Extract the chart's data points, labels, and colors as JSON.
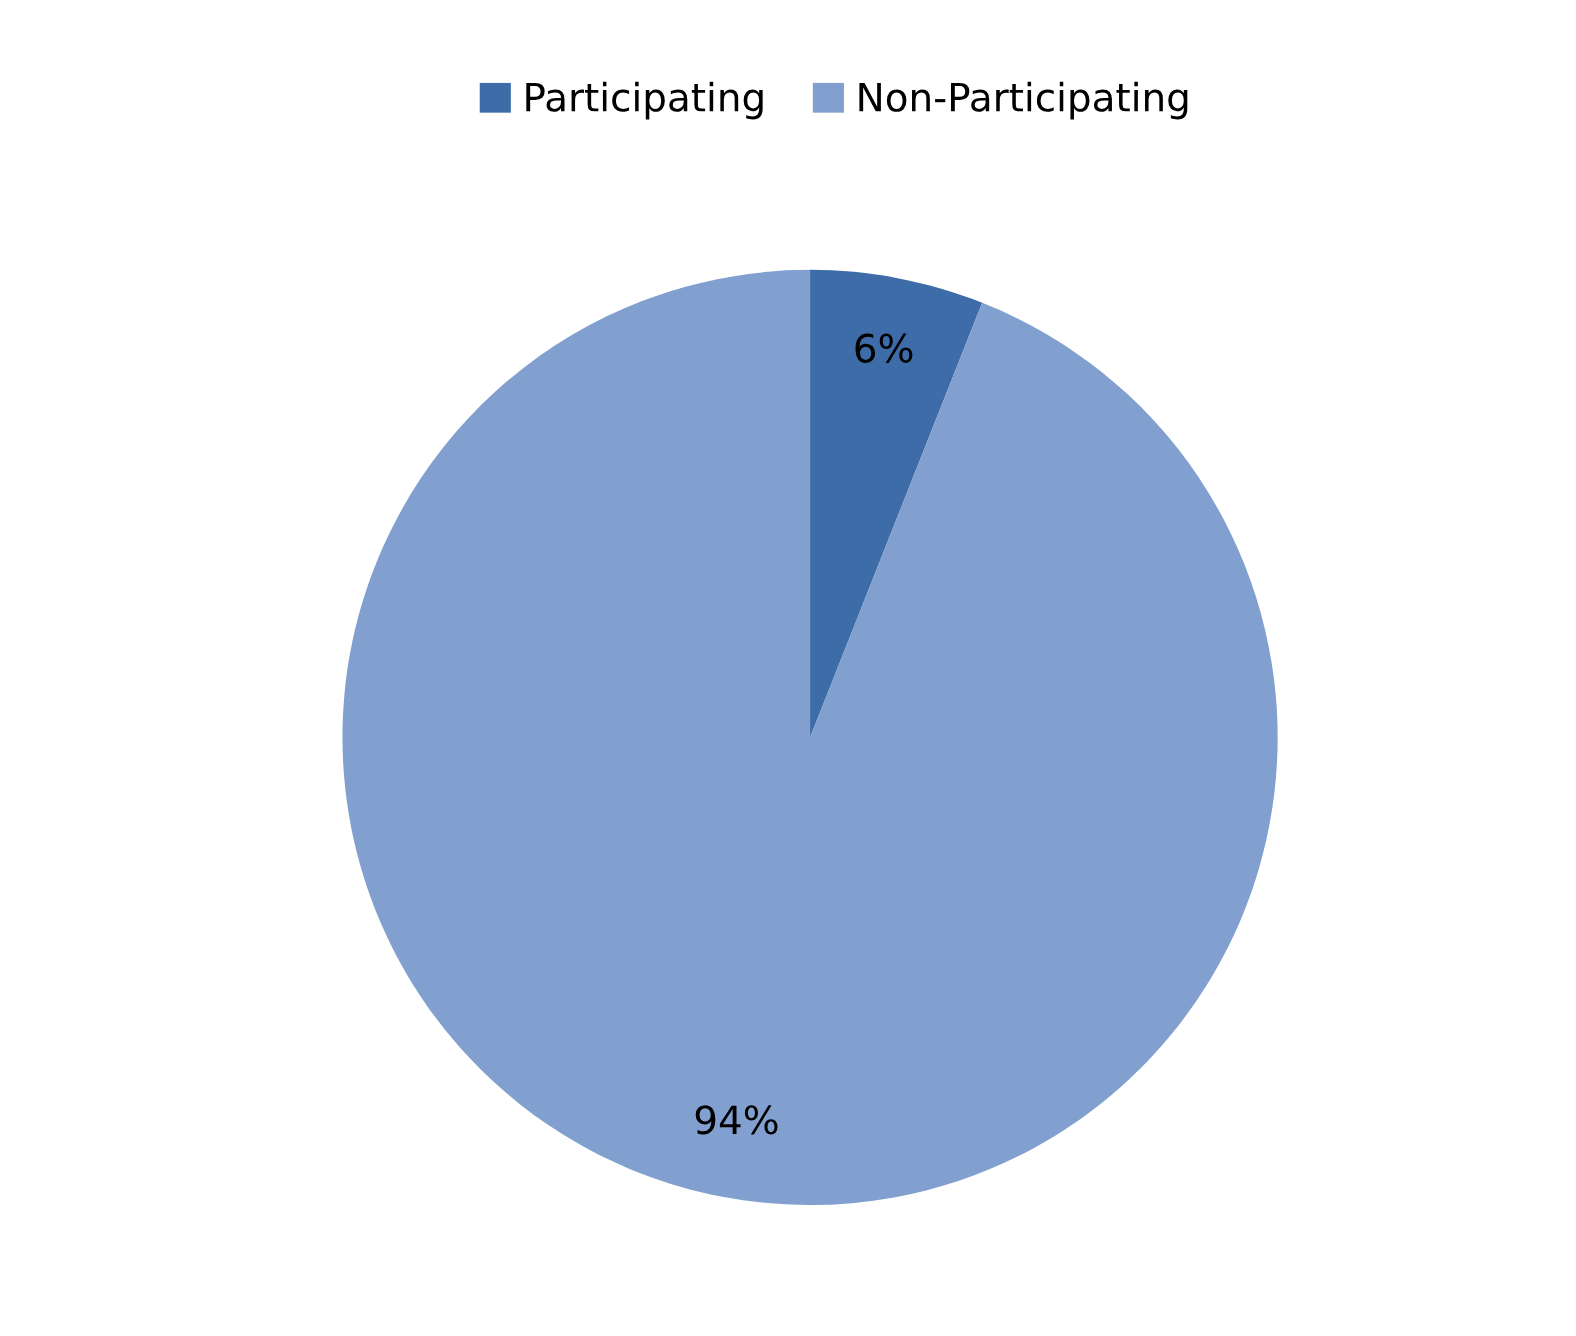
{
  "chart_data": {
    "type": "pie",
    "categories": [
      "Participating",
      "Non-Participating"
    ],
    "values": [
      6,
      94
    ],
    "colors": [
      "#3e6ca8",
      "#819fcf"
    ],
    "value_labels": [
      "6%",
      "94%"
    ],
    "legend": "top"
  }
}
